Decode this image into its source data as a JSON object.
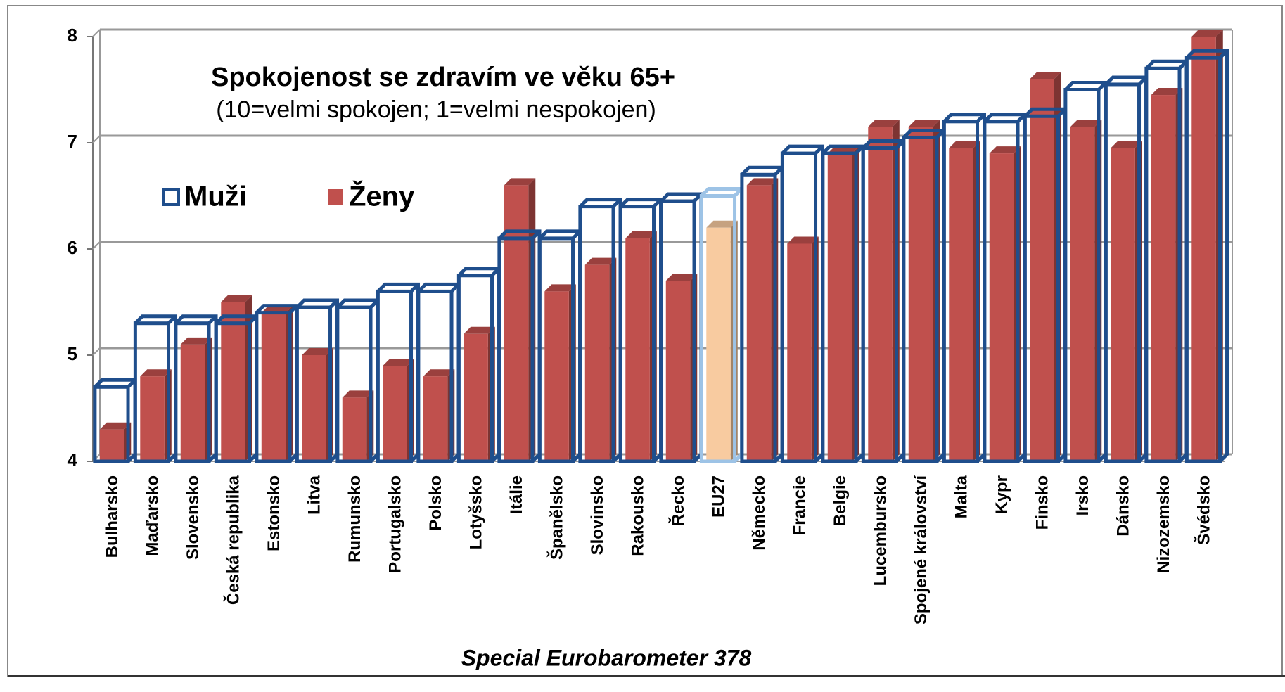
{
  "chart_data": {
    "type": "bar",
    "title": "Spokojenost se zdravím ve věku 65+",
    "subtitle": "(10=velmi  spokojen;  1=velmi  nespokojen)",
    "source": "Special Eurobarometer 378",
    "categories": [
      "Bulharsko",
      "Maďarsko",
      "Slovensko",
      "Česká republika",
      "Estonsko",
      "Litva",
      "Rumunsko",
      "Portugalsko",
      "Polsko",
      "Lotyšsko",
      "Itálie",
      "Španělsko",
      "Slovinsko",
      "Rakousko",
      "Řecko",
      "EU27",
      "Německo",
      "Francie",
      "Belgie",
      "Lucembursko",
      "Spojené království",
      "Malta",
      "Kypr",
      "Finsko",
      "Irsko",
      "Dánsko",
      "Nizozemsko",
      "Švédsko"
    ],
    "series": [
      {
        "name": "Muži",
        "color": "#1f4e8c",
        "values": [
          4.7,
          5.3,
          5.3,
          5.3,
          5.4,
          5.45,
          5.45,
          5.6,
          5.6,
          5.75,
          6.1,
          6.1,
          6.4,
          6.4,
          6.45,
          6.5,
          6.7,
          6.9,
          6.9,
          6.95,
          7.05,
          7.2,
          7.2,
          7.25,
          7.5,
          7.55,
          7.7,
          7.8
        ]
      },
      {
        "name": "Ženy",
        "color": "#c0504d",
        "values": [
          4.3,
          4.8,
          5.1,
          5.5,
          5.4,
          5.0,
          4.6,
          4.9,
          4.8,
          5.2,
          6.6,
          5.6,
          5.85,
          6.1,
          5.7,
          6.2,
          6.6,
          6.05,
          6.9,
          7.15,
          7.15,
          6.95,
          6.9,
          7.6,
          7.15,
          6.95,
          7.45,
          8.0
        ]
      }
    ],
    "highlight": {
      "category": "EU27",
      "colors": [
        "#9dc3e6",
        "#f8cba0"
      ]
    },
    "ylim": [
      4,
      8
    ],
    "yticks": [
      4,
      5,
      6,
      7,
      8
    ],
    "grid": true,
    "legend": "top-left"
  }
}
